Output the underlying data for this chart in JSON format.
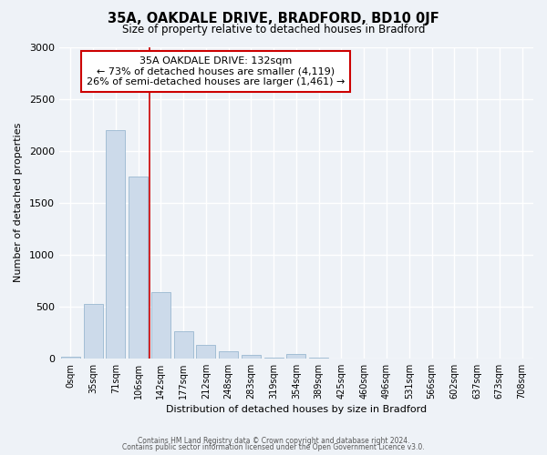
{
  "title": "35A, OAKDALE DRIVE, BRADFORD, BD10 0JF",
  "subtitle": "Size of property relative to detached houses in Bradford",
  "xlabel": "Distribution of detached houses by size in Bradford",
  "ylabel": "Number of detached properties",
  "bar_labels": [
    "0sqm",
    "35sqm",
    "71sqm",
    "106sqm",
    "142sqm",
    "177sqm",
    "212sqm",
    "248sqm",
    "283sqm",
    "319sqm",
    "354sqm",
    "389sqm",
    "425sqm",
    "460sqm",
    "496sqm",
    "531sqm",
    "566sqm",
    "602sqm",
    "637sqm",
    "673sqm",
    "708sqm"
  ],
  "bar_values": [
    20,
    520,
    2200,
    1750,
    640,
    260,
    130,
    70,
    30,
    5,
    40,
    5,
    0,
    0,
    0,
    0,
    0,
    0,
    0,
    0,
    0
  ],
  "bar_color": "#ccdaea",
  "bar_edge_color": "#9ab8d0",
  "vline_color": "#cc0000",
  "vline_x_index": 4,
  "annotation_line1": "35A OAKDALE DRIVE: 132sqm",
  "annotation_line2": "← 73% of detached houses are smaller (4,119)",
  "annotation_line3": "26% of semi-detached houses are larger (1,461) →",
  "ylim": [
    0,
    3000
  ],
  "yticks": [
    0,
    500,
    1000,
    1500,
    2000,
    2500,
    3000
  ],
  "background_color": "#eef2f7",
  "grid_color": "#ffffff",
  "footer_line1": "Contains HM Land Registry data © Crown copyright and database right 2024.",
  "footer_line2": "Contains public sector information licensed under the Open Government Licence v3.0."
}
